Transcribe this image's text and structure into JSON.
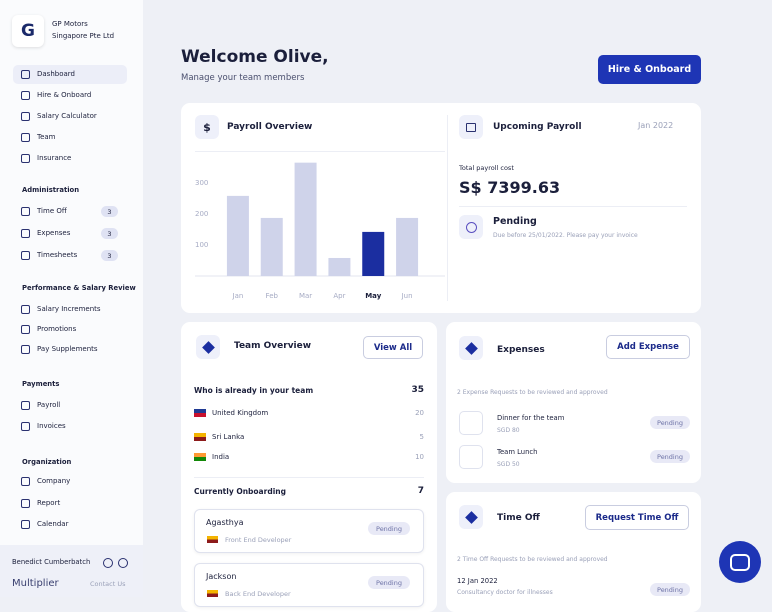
{
  "sidebar": {
    "logo": "G",
    "company": [
      "GP Motors",
      "Singapore Pte Ltd"
    ],
    "nav": [
      {
        "label": "Dashboard"
      },
      {
        "label": "Hire & Onboard"
      },
      {
        "label": "Salary Calculator"
      },
      {
        "label": "Team"
      },
      {
        "label": "Insurance"
      }
    ],
    "sections": [
      {
        "title": "Administration",
        "items": [
          {
            "label": "Time Off",
            "badge": 3
          },
          {
            "label": "Expenses",
            "badge": 3
          },
          {
            "label": "Timesheets",
            "badge": 3
          }
        ]
      },
      {
        "title": "Performance & Salary Review",
        "items": [
          {
            "label": "Salary Increments"
          },
          {
            "label": "Promotions"
          },
          {
            "label": "Pay Supplements"
          }
        ]
      },
      {
        "title": "Payments",
        "items": [
          {
            "label": "Payroll"
          },
          {
            "label": "Invoices"
          }
        ]
      },
      {
        "title": "Organization",
        "items": [
          {
            "label": "Company"
          },
          {
            "label": "Report"
          },
          {
            "label": "Calendar"
          }
        ]
      }
    ],
    "footer": {
      "user": "Benedict Cumberbatch",
      "brand": "Multiplier",
      "contact": "Contact Us"
    }
  },
  "header": {
    "title": "Welcome Olive,",
    "subtitle": "Manage your team members",
    "button": "Hire & Onboard"
  },
  "chart_data": {
    "type": "bar",
    "title": "Payroll Overview",
    "categories": [
      "Jan",
      "Feb",
      "Mar",
      "Apr",
      "May",
      "Jun"
    ],
    "values": [
      258,
      187,
      365,
      58,
      142,
      187
    ],
    "colors": [
      "#cfd3ea",
      "#cfd3ea",
      "#cfd3ea",
      "#cfd3ea",
      "#1b2ea0",
      "#cfd3ea"
    ],
    "ylim": [
      0,
      380
    ],
    "yticks": [
      100,
      200,
      300
    ]
  },
  "upcoming_payroll": {
    "title": "Upcoming Payroll",
    "date": "Jan 2022",
    "cost_label": "Total payroll cost",
    "cost": "S$ 7399.63",
    "status": "Pending",
    "note": "Due before 25/01/2022. Please pay your invoice"
  },
  "team_overview": {
    "title": "Team Overview",
    "button": "View All",
    "in_team_label": "Who is already in your team",
    "in_team_count": 35,
    "countries": [
      {
        "name": "United Kingdom",
        "count": 20
      },
      {
        "name": "Sri Lanka",
        "count": 5
      },
      {
        "name": "India",
        "count": 10
      }
    ],
    "onboarding_label": "Currently Onboarding",
    "onboarding_count": 7,
    "onboarding": [
      {
        "name": "Agasthya",
        "role": "Front End Developer",
        "status": "Pending"
      },
      {
        "name": "Jackson",
        "role": "Back End Developer",
        "status": "Pending"
      }
    ]
  },
  "expenses": {
    "title": "Expenses",
    "button": "Add Expense",
    "summary": "2 Expense Requests to be reviewed and approved",
    "items": [
      {
        "name": "Dinner for the team",
        "amount": "SGD 80",
        "status": "Pending"
      },
      {
        "name": "Team Lunch",
        "amount": "SGD 50",
        "status": "Pending"
      }
    ]
  },
  "time_off": {
    "title": "Time Off",
    "button": "Request Time Off",
    "summary": "2 Time Off Requests to be reviewed and approved",
    "items": [
      {
        "date": "12 Jan 2022",
        "reason": "Consultancy doctor for illnesses",
        "status": "Pending"
      }
    ]
  }
}
